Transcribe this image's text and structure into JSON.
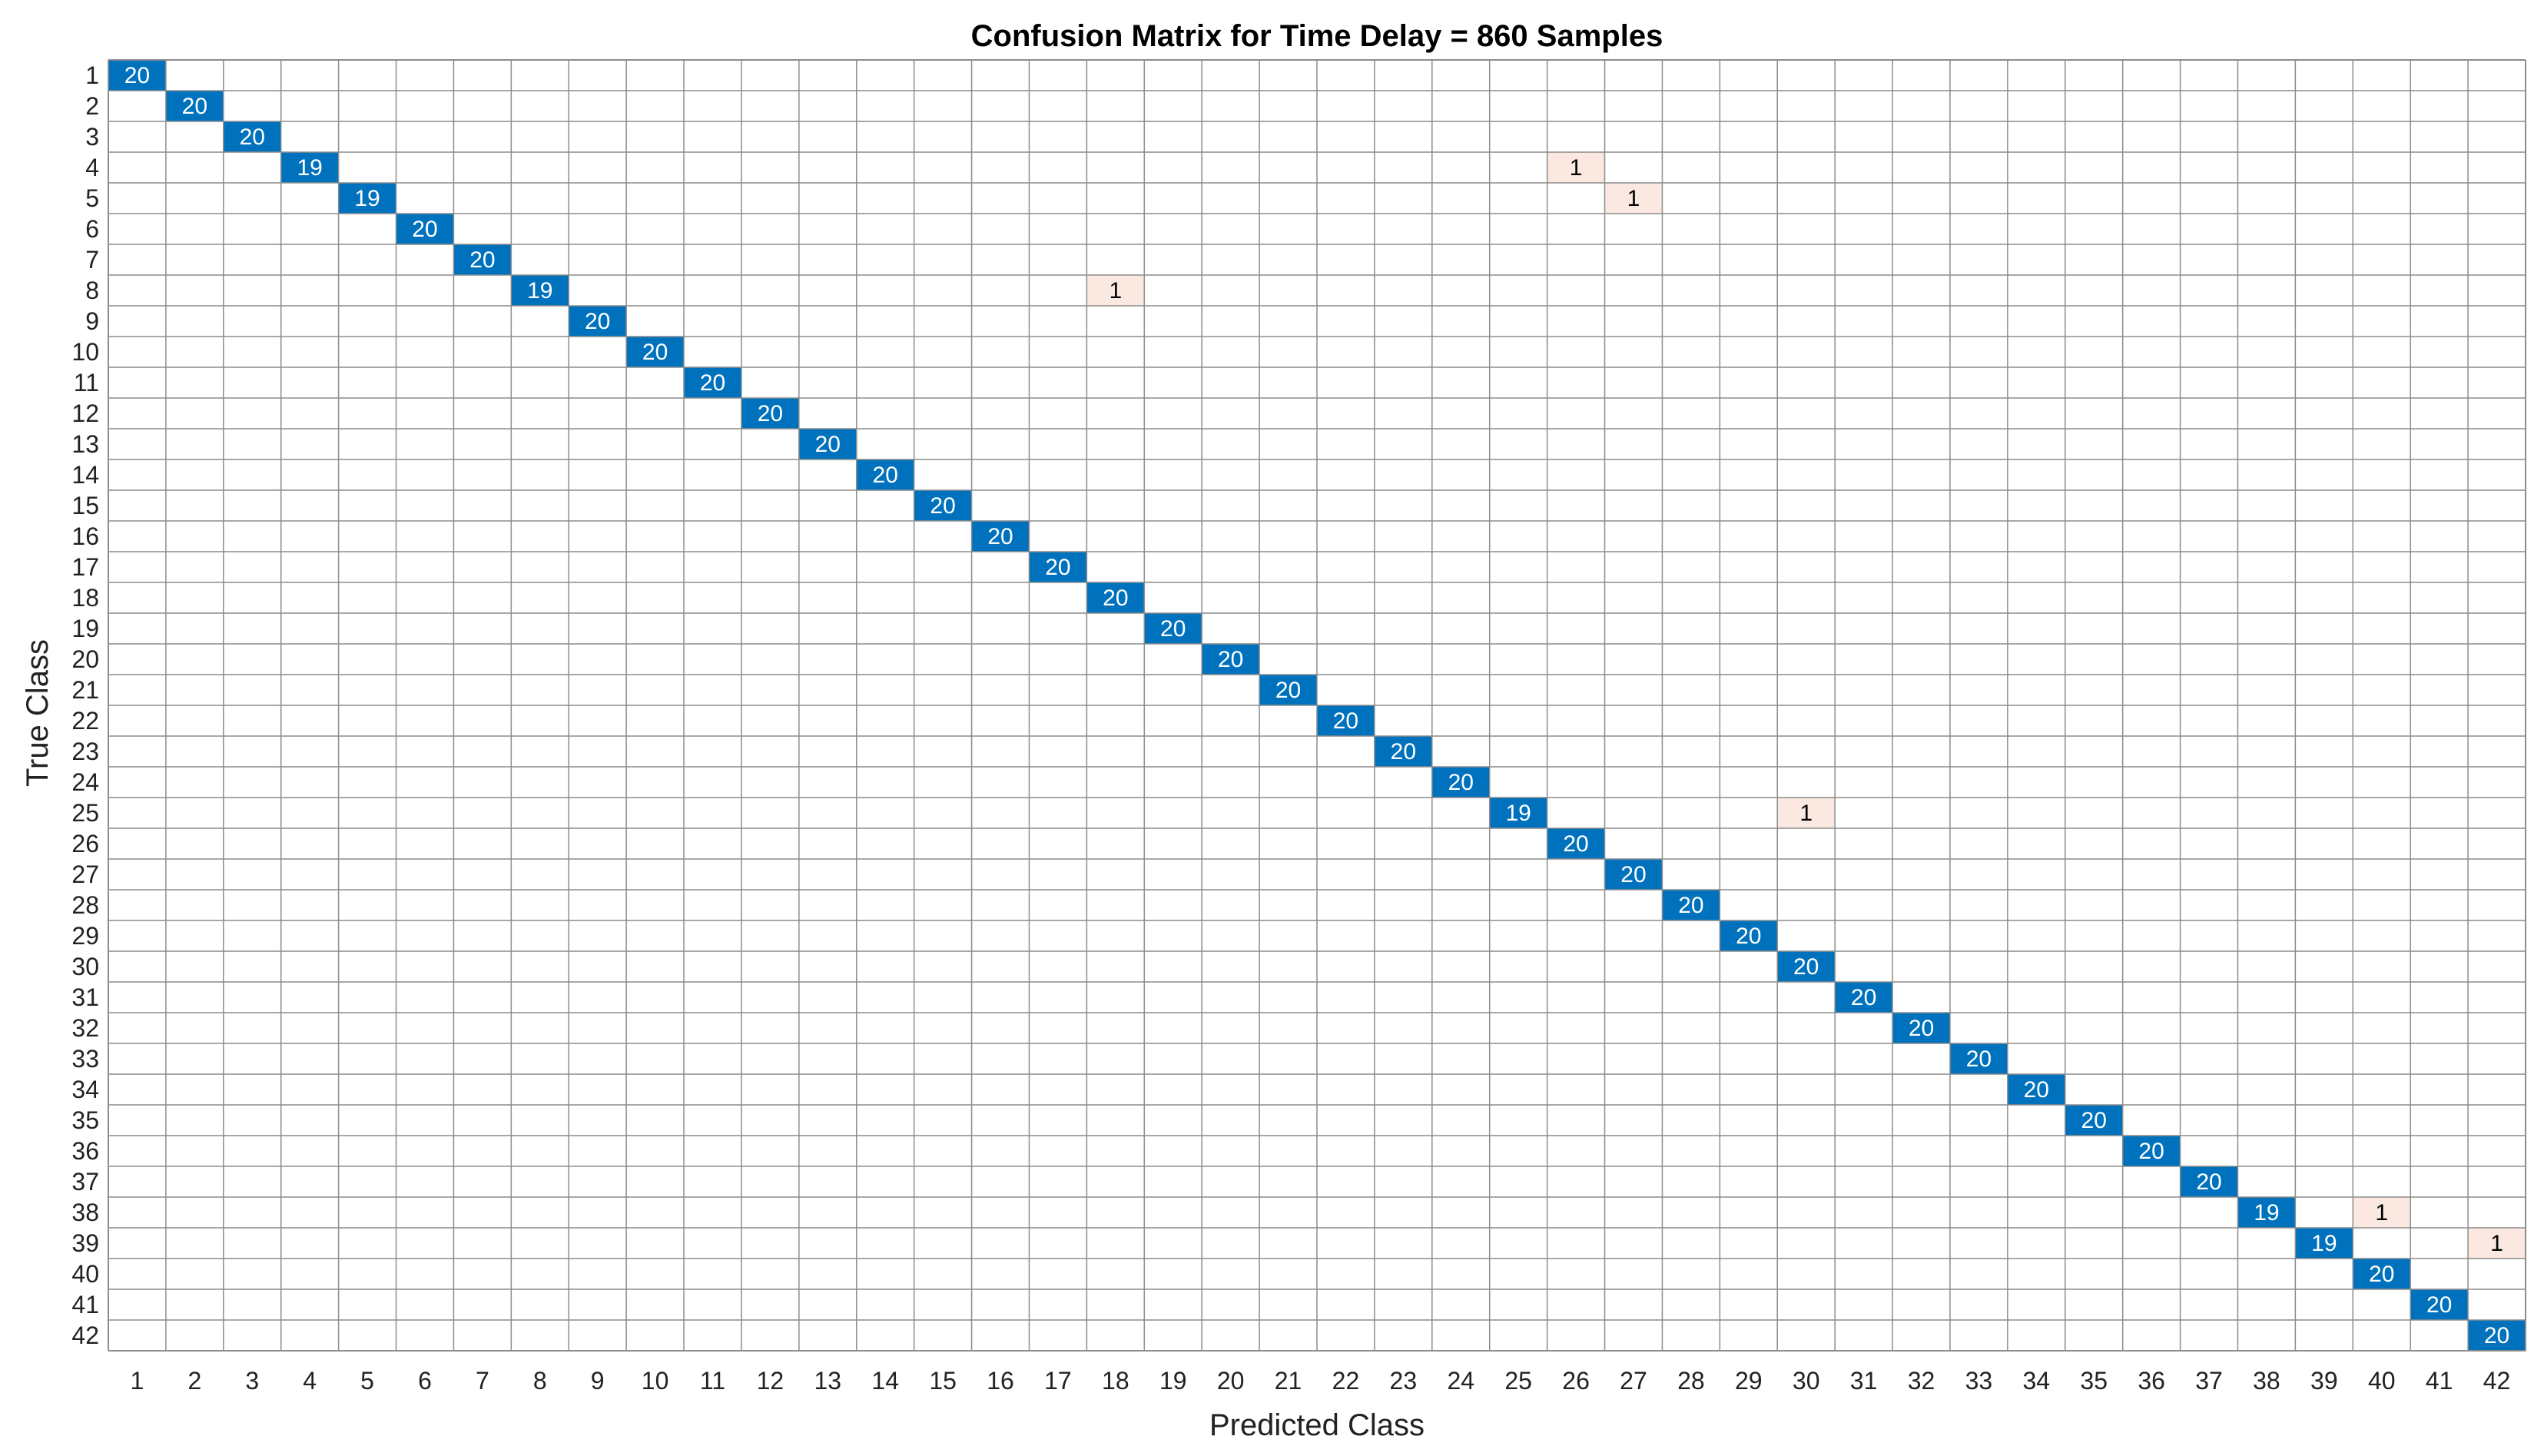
{
  "chart_data": {
    "type": "heatmap",
    "title": "Confusion Matrix for Time Delay = 860 Samples",
    "xlabel": "Predicted Class",
    "ylabel": "True Class",
    "classes": [
      "1",
      "2",
      "3",
      "4",
      "5",
      "6",
      "7",
      "8",
      "9",
      "10",
      "11",
      "12",
      "13",
      "14",
      "15",
      "16",
      "17",
      "18",
      "19",
      "20",
      "21",
      "22",
      "23",
      "24",
      "25",
      "26",
      "27",
      "28",
      "29",
      "30",
      "31",
      "32",
      "33",
      "34",
      "35",
      "36",
      "37",
      "38",
      "39",
      "40",
      "41",
      "42"
    ],
    "diagonal": [
      20,
      20,
      20,
      19,
      19,
      20,
      20,
      19,
      20,
      20,
      20,
      20,
      20,
      20,
      20,
      20,
      20,
      20,
      20,
      20,
      20,
      20,
      20,
      20,
      19,
      20,
      20,
      20,
      20,
      20,
      20,
      20,
      20,
      20,
      20,
      20,
      20,
      19,
      19,
      20,
      20,
      20
    ],
    "off_diagonal": [
      {
        "true": 4,
        "predicted": 26,
        "value": 1
      },
      {
        "true": 5,
        "predicted": 27,
        "value": 1
      },
      {
        "true": 8,
        "predicted": 18,
        "value": 1
      },
      {
        "true": 25,
        "predicted": 30,
        "value": 1
      },
      {
        "true": 38,
        "predicted": 40,
        "value": 1
      },
      {
        "true": 39,
        "predicted": 42,
        "value": 1
      }
    ],
    "grid": true,
    "colors": {
      "diagonal_fill": "#0072bd",
      "diagonal_text": "#ffffff",
      "error_fill": "#fbe8e1",
      "error_text": "#000000",
      "grid_line": "#8c8c8c"
    }
  }
}
